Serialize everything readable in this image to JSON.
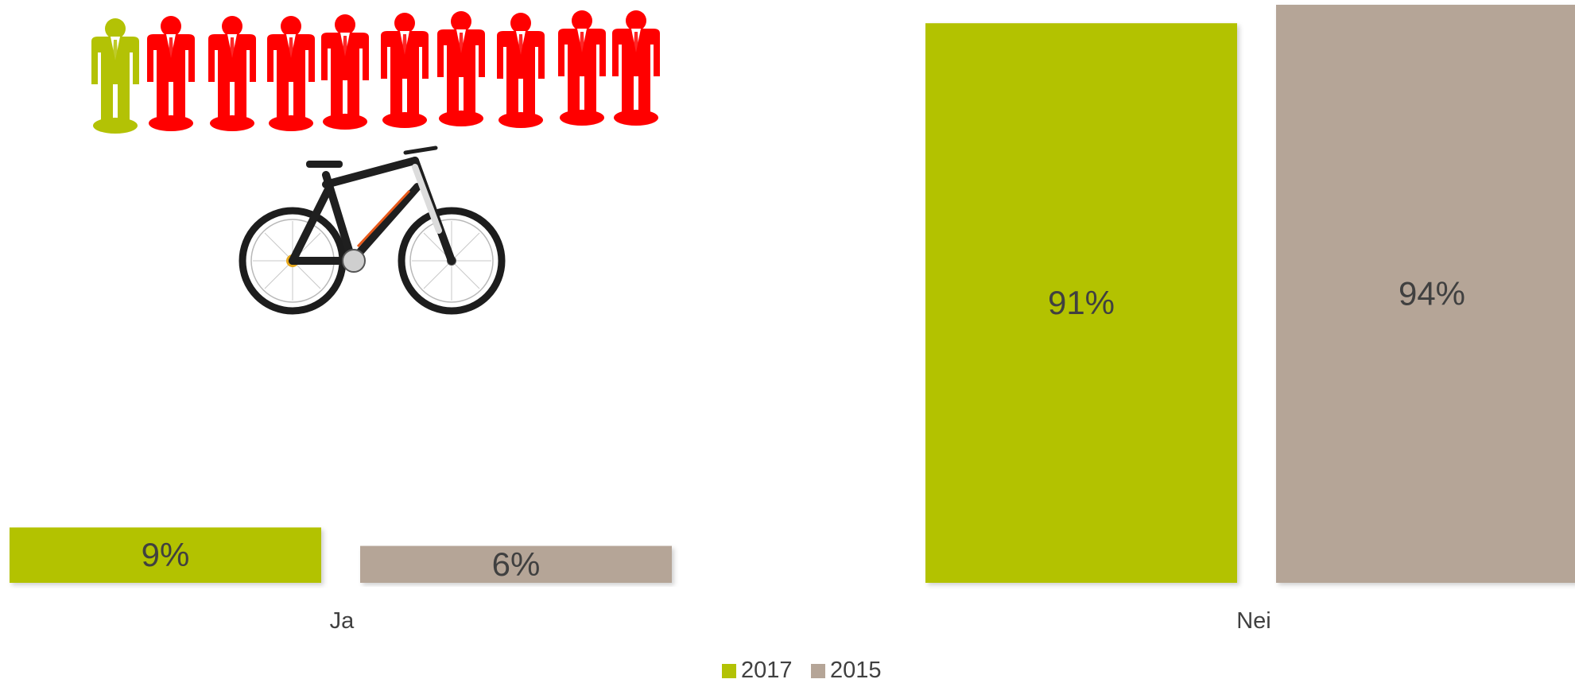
{
  "chart_data": {
    "type": "bar",
    "categories": [
      "Ja",
      "Nei"
    ],
    "series": [
      {
        "name": "2017",
        "values": [
          9,
          91
        ],
        "labels": [
          "9%",
          "91%"
        ],
        "color": "#b3c205"
      },
      {
        "name": "2015",
        "values": [
          6,
          94
        ],
        "labels": [
          "6%",
          "94%"
        ],
        "color": "#b5a597"
      }
    ],
    "ylim": [
      0,
      94
    ],
    "grid": false,
    "legend": "bottom",
    "xlabel": "",
    "ylabel": ""
  },
  "illustration": {
    "people": {
      "total": 10,
      "highlighted": 1,
      "highlight_color": "#b3c205",
      "base_color": "#ff0000"
    },
    "bicycle": "electric-bike-icon"
  }
}
